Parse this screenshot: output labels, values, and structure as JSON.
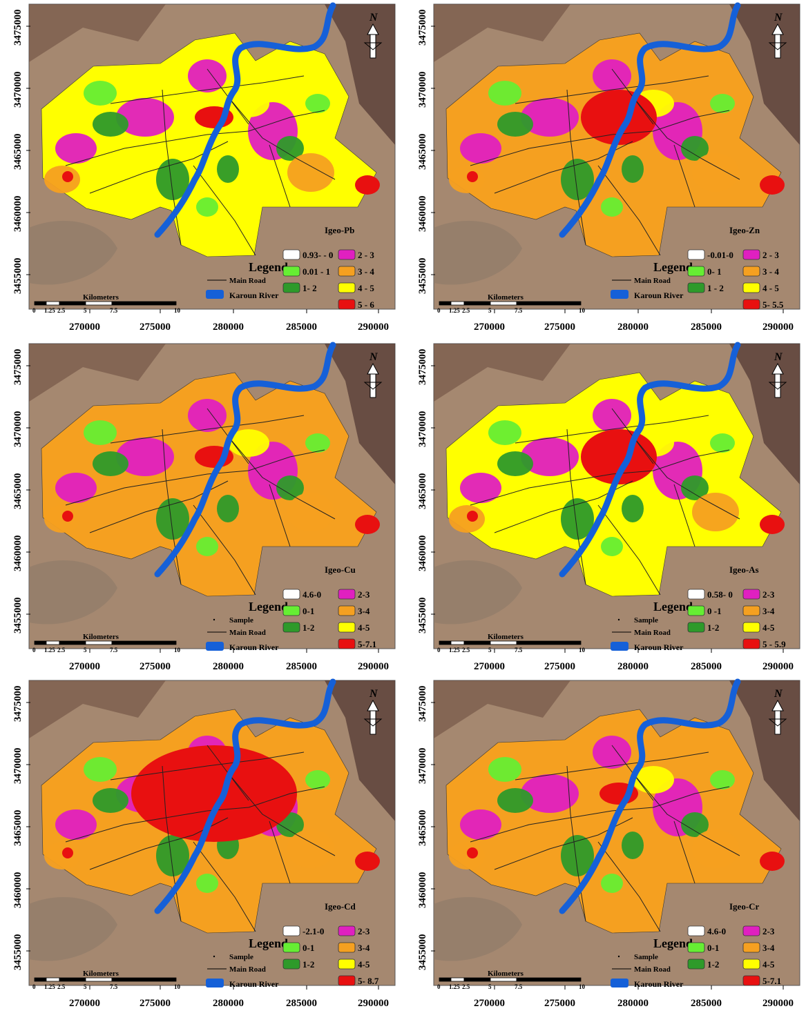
{
  "axes": {
    "y_ticks": [
      "3475000",
      "3470000",
      "3465000",
      "3460000",
      "3455000"
    ],
    "x_ticks": [
      "270000",
      "275000",
      "280000",
      "285000",
      "290000"
    ]
  },
  "scale_bar": {
    "title": "Kilometers",
    "ticks": [
      "0",
      "1.25",
      "2.5",
      "5",
      "7.5",
      "10"
    ]
  },
  "north_arrow": {
    "label": "N",
    "icon": "north-arrow-icon"
  },
  "legend_common": {
    "title": "Legend",
    "sample": "Sample",
    "main_road": "Main Road",
    "river": "Karoun River"
  },
  "colors": {
    "class0": "#ffffff",
    "class1": "#66ee33",
    "class2": "#2e9a2a",
    "class3": "#e020c0",
    "class4": "#f5a020",
    "class5": "#ffff00",
    "class6": "#e81010",
    "river": "#1560d8",
    "road": "#222222",
    "background": "#a58870"
  },
  "panels": [
    {
      "id": "pb",
      "title": "Igeo-Pb",
      "show_sample": false,
      "classes": [
        "0.93- - 0",
        "0.01 - 1",
        "1- 2",
        "2 - 3",
        "3 - 4",
        "4 - 5",
        "5 - 6"
      ],
      "dominant": "class5",
      "hot_extent": "small"
    },
    {
      "id": "zn",
      "title": "Igeo-Zn",
      "show_sample": false,
      "classes": [
        "-0.01-0",
        "0- 1",
        "1 - 2",
        "2 - 3",
        "3 - 4",
        "4 - 5",
        "5- 5.5"
      ],
      "dominant": "class4",
      "hot_extent": "medium"
    },
    {
      "id": "cu",
      "title": "Igeo-Cu",
      "show_sample": true,
      "classes": [
        "4.6-0",
        "0-1",
        "1-2",
        "2-3",
        "3-4",
        "4-5",
        "5-7.1"
      ],
      "dominant": "class4",
      "hot_extent": "small"
    },
    {
      "id": "as",
      "title": "Igeo-As",
      "show_sample": true,
      "classes": [
        "0.58- 0",
        "0 -1",
        "1-2",
        "2-3",
        "3-4",
        "4-5",
        "5 - 5.9"
      ],
      "dominant": "class5",
      "hot_extent": "medium"
    },
    {
      "id": "cd",
      "title": "Igeo-Cd",
      "show_sample": true,
      "classes": [
        "-2.1-0",
        "0-1",
        "1-2",
        "2-3",
        "3-4",
        "4-5",
        "5- 8.7"
      ],
      "dominant": "class4",
      "hot_extent": "large"
    },
    {
      "id": "cr",
      "title": "Igeo-Cr",
      "show_sample": true,
      "classes": [
        "4.6-0",
        "0-1",
        "1-2",
        "2-3",
        "3-4",
        "4-5",
        "5-7.1"
      ],
      "dominant": "class4",
      "hot_extent": "small"
    }
  ]
}
